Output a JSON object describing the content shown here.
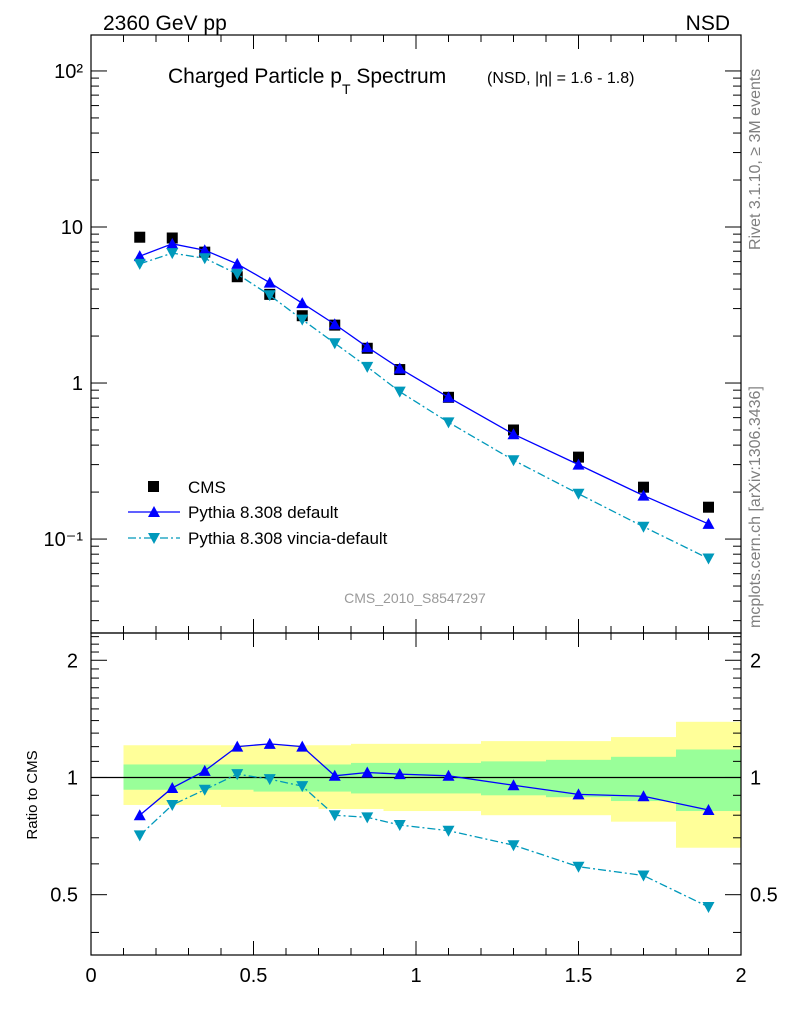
{
  "header": {
    "left": "2360 GeV pp",
    "right": "NSD"
  },
  "side_text": {
    "top": "Rivet 3.1.10, ≥ 3M events",
    "bottom": "mcplots.cern.ch [arXiv:1306.3436]"
  },
  "chart_data": [
    {
      "type": "scatter",
      "title": "Charged Particle p",
      "title_sub": "T",
      "title_rest": " Spectrum",
      "title_note": "(NSD, |η| = 1.6 - 1.8)",
      "analysis_label": "CMS_2010_S8547297",
      "xlabel": "",
      "ylabel": "",
      "xlim": [
        0,
        2
      ],
      "ylim": [
        0.025,
        170
      ],
      "log_y": true,
      "ytick_labels": [
        "10²",
        "10",
        "1",
        "10⁻¹"
      ],
      "legend_position": "bottom-left",
      "x": [
        0.15,
        0.25,
        0.35,
        0.45,
        0.55,
        0.65,
        0.75,
        0.85,
        0.95,
        1.1,
        1.3,
        1.5,
        1.7,
        1.9
      ],
      "series": [
        {
          "name": "CMS",
          "marker": "square",
          "color": "#000000",
          "values": [
            8.6,
            8.5,
            6.9,
            4.8,
            3.7,
            2.7,
            2.35,
            1.67,
            1.22,
            0.81,
            0.5,
            0.335,
            0.215,
            0.16
          ]
        },
        {
          "name": "Pythia 8.308 default",
          "marker": "triangle-up",
          "color": "#0000ff",
          "line": "solid",
          "values": [
            6.5,
            7.8,
            7.1,
            5.8,
            4.4,
            3.25,
            2.38,
            1.7,
            1.24,
            0.81,
            0.47,
            0.3,
            0.19,
            0.125
          ]
        },
        {
          "name": "Pythia 8.308 vincia-default",
          "marker": "triangle-down",
          "color": "#0099bb",
          "line": "dashdot",
          "values": [
            5.8,
            6.8,
            6.3,
            5.0,
            3.65,
            2.55,
            1.8,
            1.27,
            0.88,
            0.56,
            0.32,
            0.195,
            0.12,
            0.075
          ]
        }
      ]
    },
    {
      "type": "line",
      "ylabel": "Ratio to CMS",
      "xlim": [
        0,
        2
      ],
      "ylim": [
        0.35,
        2.35
      ],
      "yticks": [
        0.5,
        1,
        2
      ],
      "ytick_labels": [
        "0.5",
        "1",
        "2"
      ],
      "xticks": [
        0,
        0.5,
        1,
        1.5,
        2
      ],
      "xtick_labels": [
        "0",
        "0.5",
        "1",
        "1.5",
        "2"
      ],
      "bands": {
        "edges": [
          0.1,
          0.2,
          0.3,
          0.4,
          0.5,
          0.6,
          0.7,
          0.8,
          0.9,
          1.0,
          1.2,
          1.4,
          1.6,
          1.8,
          2.0
        ],
        "yellow_low": [
          0.85,
          0.85,
          0.85,
          0.84,
          0.84,
          0.84,
          0.83,
          0.83,
          0.82,
          0.82,
          0.8,
          0.8,
          0.77,
          0.66
        ],
        "yellow_high": [
          1.21,
          1.21,
          1.21,
          1.21,
          1.21,
          1.21,
          1.21,
          1.22,
          1.22,
          1.22,
          1.24,
          1.24,
          1.27,
          1.39
        ],
        "green_low": [
          0.93,
          0.93,
          0.93,
          0.93,
          0.92,
          0.92,
          0.92,
          0.91,
          0.91,
          0.91,
          0.9,
          0.89,
          0.87,
          0.82
        ],
        "green_high": [
          1.08,
          1.08,
          1.08,
          1.08,
          1.08,
          1.08,
          1.08,
          1.09,
          1.09,
          1.09,
          1.1,
          1.11,
          1.13,
          1.18
        ],
        "yellow_color": "#ffff99",
        "green_color": "#99ff99"
      },
      "x": [
        0.15,
        0.25,
        0.35,
        0.45,
        0.55,
        0.65,
        0.75,
        0.85,
        0.95,
        1.1,
        1.3,
        1.5,
        1.7,
        1.9
      ],
      "series": [
        {
          "name": "Pythia 8.308 default",
          "color": "#0000ff",
          "line": "solid",
          "marker": "triangle-up",
          "values": [
            0.8,
            0.94,
            1.04,
            1.2,
            1.22,
            1.2,
            1.01,
            1.03,
            1.02,
            1.01,
            0.955,
            0.905,
            0.895,
            0.825
          ]
        },
        {
          "name": "Pythia 8.308 vincia-default",
          "color": "#0099bb",
          "line": "dashdot",
          "marker": "triangle-down",
          "values": [
            0.71,
            0.85,
            0.93,
            1.02,
            0.99,
            0.95,
            0.8,
            0.79,
            0.755,
            0.73,
            0.67,
            0.59,
            0.56,
            0.465
          ]
        }
      ]
    }
  ]
}
